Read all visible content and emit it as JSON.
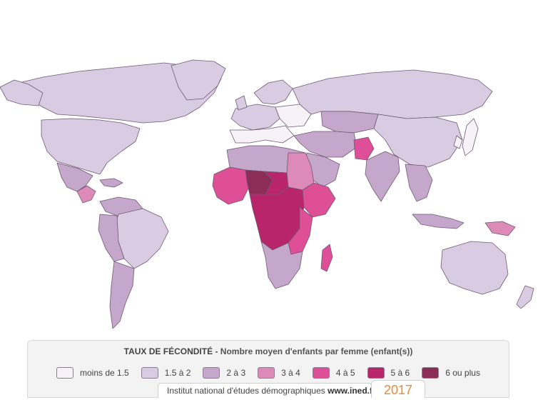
{
  "map": {
    "colors": {
      "lt15": "#f6f2f7",
      "c15_2": "#d9cce2",
      "c2_3": "#c6a7cc",
      "c3_4": "#dd8ab8",
      "c4_5": "#df4f98",
      "c5_6": "#b8256b",
      "c6p": "#8c2d57"
    }
  },
  "legend": {
    "title": "TAUX DE FÉCONDITÉ",
    "subtitle": " - Nombre moyen d'enfants par femme (enfant(s))",
    "items": [
      {
        "label": "moins de 1.5",
        "color": "#f6f2f7"
      },
      {
        "label": "1.5 à 2",
        "color": "#d9cce2"
      },
      {
        "label": "2 à 3",
        "color": "#c6a7cc"
      },
      {
        "label": "3 à 4",
        "color": "#dd8ab8"
      },
      {
        "label": "4 à 5",
        "color": "#df4f98"
      },
      {
        "label": "5 à 6",
        "color": "#b8256b"
      },
      {
        "label": "6 ou plus",
        "color": "#8c2d57"
      }
    ]
  },
  "footer": {
    "credit_prefix": "Institut national d'études démographiques ",
    "credit_site": "www.ined.fr",
    "year": "2017"
  }
}
